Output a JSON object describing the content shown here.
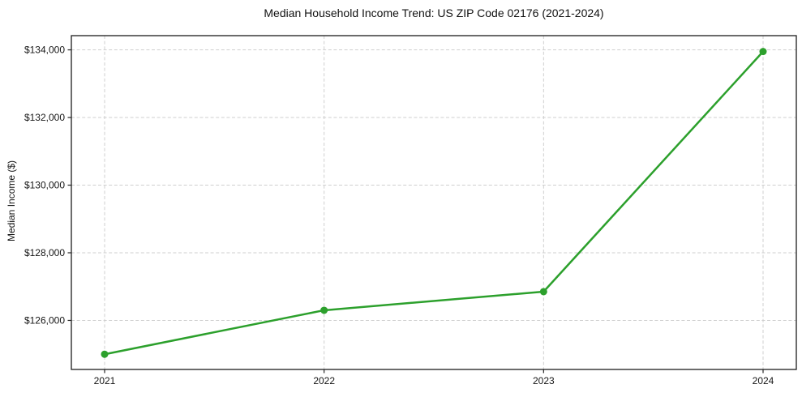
{
  "chart_data": {
    "type": "line",
    "title": "Median Household Income Trend: US ZIP Code 02176 (2021-2024)",
    "xlabel": "",
    "ylabel": "Median Income ($)",
    "categories": [
      "2021",
      "2022",
      "2023",
      "2024"
    ],
    "series": [
      {
        "values": [
          125000,
          126300,
          126850,
          133950
        ]
      }
    ],
    "yticks": [
      126000,
      128000,
      130000,
      132000,
      134000
    ],
    "ytick_labels": [
      "$126,000",
      "$128,000",
      "$130,000",
      "$132,000",
      "$134,000"
    ],
    "ylim": [
      124550,
      134420
    ],
    "grid": true,
    "legend": false,
    "line_color": "#2ca02c",
    "marker": "circle",
    "frame_color": "#1c1c1c",
    "grid_color": "#cfcfcf"
  }
}
